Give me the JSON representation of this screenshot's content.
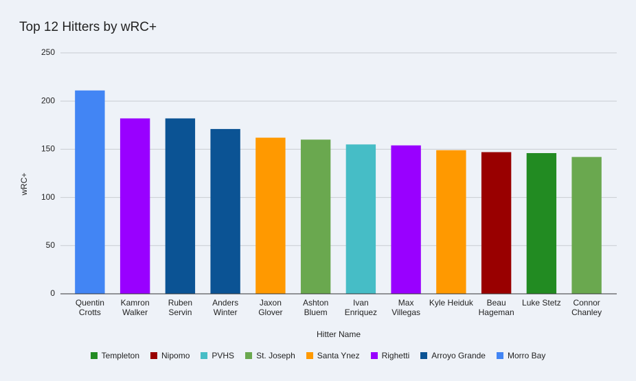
{
  "chart_data": {
    "type": "bar",
    "title": "Top 12 Hitters by wRC+",
    "x_label": "Hitter Name",
    "y_label": "wRC+",
    "categories": [
      "Quentin Crotts",
      "Kamron Walker",
      "Ruben Servin",
      "Anders Winter",
      "Jaxon Glover",
      "Ashton Bluem",
      "Ivan Enriquez",
      "Max Villegas",
      "Kyle Heiduk",
      "Beau Hageman",
      "Luke Stetz",
      "Connor Chanley"
    ],
    "series": [
      {
        "name": "Templeton",
        "color": "#228b22",
        "values": [
          null,
          null,
          null,
          null,
          null,
          null,
          null,
          null,
          null,
          null,
          146,
          null
        ]
      },
      {
        "name": "Nipomo",
        "color": "#990000",
        "values": [
          null,
          null,
          null,
          null,
          null,
          null,
          null,
          null,
          null,
          147,
          null,
          null
        ]
      },
      {
        "name": "PVHS",
        "color": "#46bdc6",
        "values": [
          null,
          null,
          null,
          null,
          null,
          null,
          155,
          null,
          null,
          null,
          null,
          null
        ]
      },
      {
        "name": "St. Joseph",
        "color": "#6aa84f",
        "values": [
          null,
          null,
          null,
          null,
          null,
          160,
          null,
          null,
          null,
          null,
          null,
          142
        ]
      },
      {
        "name": "Santa Ynez",
        "color": "#ff9900",
        "values": [
          null,
          null,
          null,
          null,
          162,
          null,
          null,
          null,
          149,
          null,
          null,
          null
        ]
      },
      {
        "name": "Righetti",
        "color": "#9900ff",
        "values": [
          null,
          182,
          null,
          null,
          null,
          null,
          null,
          154,
          null,
          null,
          null,
          null
        ]
      },
      {
        "name": "Arroyo Grande",
        "color": "#0b5394",
        "values": [
          null,
          null,
          182,
          171,
          null,
          null,
          null,
          null,
          null,
          null,
          null,
          null
        ]
      },
      {
        "name": "Morro Bay",
        "color": "#4285f4",
        "values": [
          211,
          null,
          null,
          null,
          null,
          null,
          null,
          null,
          null,
          null,
          null,
          null
        ]
      }
    ],
    "ylim": [
      0,
      250
    ],
    "yticks": [
      0,
      50,
      100,
      150,
      200,
      250
    ],
    "grid": true,
    "legend": "bottom"
  }
}
